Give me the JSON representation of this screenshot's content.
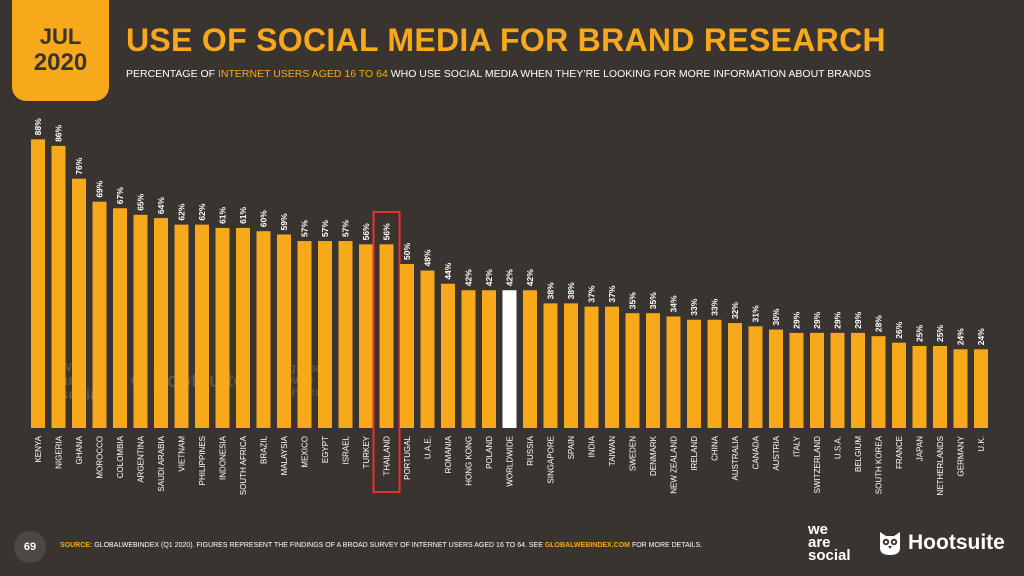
{
  "badge": {
    "month": "JUL",
    "year": "2020"
  },
  "header": {
    "title": "USE OF SOCIAL MEDIA FOR BRAND RESEARCH",
    "subtitle_pre": "PERCENTAGE OF ",
    "subtitle_highlight": "INTERNET USERS AGED 16 TO 64",
    "subtitle_post": " WHO USE SOCIAL MEDIA WHEN THEY’RE LOOKING FOR MORE INFORMATION ABOUT BRANDS"
  },
  "colors": {
    "bar": "#f7a81b",
    "highlight_bar": "#ffffff",
    "background": "#3a3431",
    "highlight_box": "#e8302f"
  },
  "chart_data": {
    "type": "bar",
    "categories": [
      "KENYA",
      "NIGERIA",
      "GHANA",
      "MOROCCO",
      "COLOMBIA",
      "ARGENTINA",
      "SAUDI ARABIA",
      "VIETNAM",
      "PHILIPPINES",
      "INDONESIA",
      "SOUTH AFRICA",
      "BRAZIL",
      "MALAYSIA",
      "MEXICO",
      "EGYPT",
      "ISRAEL",
      "TURKEY",
      "THAILAND",
      "PORTUGAL",
      "U.A.E.",
      "ROMANIA",
      "HONG KONG",
      "POLAND",
      "WORLDWIDE",
      "RUSSIA",
      "SINGAPORE",
      "SPAIN",
      "INDIA",
      "TAIWAN",
      "SWEDEN",
      "DENMARK",
      "NEW ZEALAND",
      "IRELAND",
      "CHINA",
      "AUSTRALIA",
      "CANADA",
      "AUSTRIA",
      "ITALY",
      "SWITZERLAND",
      "U.S.A.",
      "BELGIUM",
      "SOUTH KOREA",
      "FRANCE",
      "JAPAN",
      "NETHERLANDS",
      "GERMANY",
      "U.K."
    ],
    "values": [
      88,
      86,
      76,
      69,
      67,
      65,
      64,
      62,
      62,
      61,
      61,
      60,
      59,
      57,
      57,
      57,
      56,
      56,
      50,
      48,
      44,
      42,
      42,
      42,
      42,
      38,
      38,
      37,
      37,
      35,
      35,
      34,
      33,
      33,
      32,
      31,
      30,
      29,
      29,
      29,
      29,
      28,
      26,
      25,
      25,
      24,
      24
    ],
    "value_labels": [
      "88%",
      "86%",
      "76%",
      "69%",
      "67%",
      "65%",
      "64%",
      "62%",
      "62%",
      "61%",
      "61%",
      "60%",
      "59%",
      "57%",
      "57%",
      "57%",
      "56%",
      "56%",
      "50%",
      "48%",
      "44%",
      "42%",
      "42%",
      "42%",
      "42%",
      "38%",
      "38%",
      "37%",
      "37%",
      "35%",
      "35%",
      "34%",
      "33%",
      "33%",
      "32%",
      "31%",
      "30%",
      "29%",
      "29%",
      "29%",
      "29%",
      "28%",
      "26%",
      "25%",
      "25%",
      "24%",
      "24%"
    ],
    "highlight_white": "WORLDWIDE",
    "highlight_boxed": "THAILAND",
    "ylim": [
      0,
      100
    ],
    "grid": false
  },
  "footer": {
    "page_number": "69",
    "source_label": "SOURCE:",
    "source_text": " GLOBALWEBINDEX (Q1 2020). FIGURES REPRESENT THE FINDINGS OF A BROAD SURVEY OF INTERNET USERS AGED 16 TO 64. SEE ",
    "source_link": "GLOBALWEBINDEX.COM",
    "source_post": " FOR MORE DETAILS."
  },
  "logos": {
    "we_are_social": [
      "we",
      "are",
      "social"
    ],
    "hootsuite": "Hootsuite",
    "globalwebindex": [
      "global",
      "web",
      "index"
    ]
  }
}
